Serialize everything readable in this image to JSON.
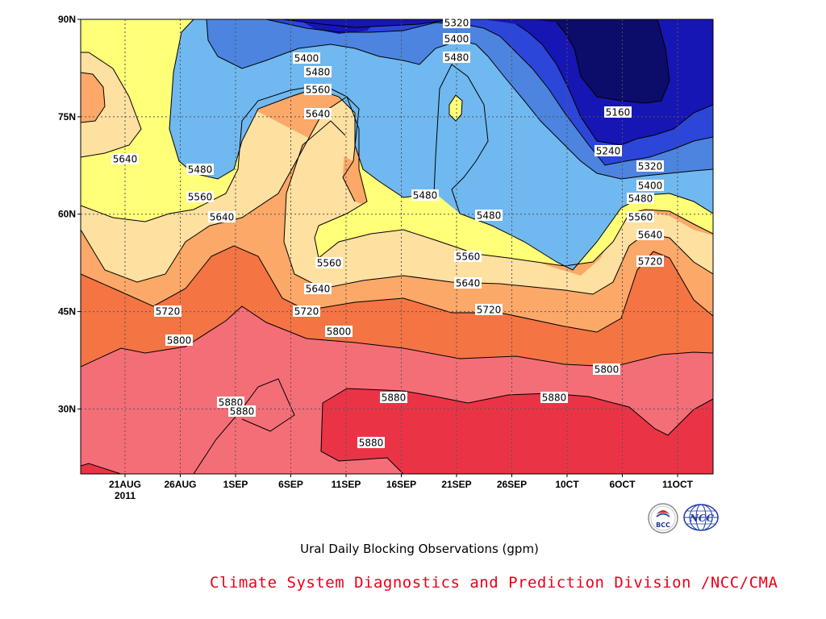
{
  "chart_data": {
    "type": "contour",
    "title": "Ural Daily Blocking Observations (gpm)",
    "x_ticks": [
      "21AUG",
      "26AUG",
      "1SEP",
      "6SEP",
      "11SEP",
      "16SEP",
      "21SEP",
      "26SEP",
      "10CT",
      "6OCT",
      "11OCT"
    ],
    "x_year_label": "2011",
    "y_ticks": [
      "30N",
      "45N",
      "60N",
      "75N",
      "90N"
    ],
    "ylim": [
      20,
      90
    ],
    "contour_levels": [
      5160,
      5240,
      5320,
      5400,
      5480,
      5560,
      5640,
      5720,
      5800,
      5880
    ],
    "level_colors": [
      "#0c0c6a",
      "#1616b4",
      "#2c46da",
      "#4c84e0",
      "#70b8f0",
      "#ffff78",
      "#fee0a0",
      "#fca868",
      "#f47444",
      "#f46e78",
      "#ea3446"
    ],
    "contour_labels": [
      {
        "text": "5320"
      },
      {
        "text": "5400"
      },
      {
        "text": "5480"
      },
      {
        "text": "5400"
      },
      {
        "text": "5480"
      },
      {
        "text": "5560"
      },
      {
        "text": "5640"
      },
      {
        "text": "5160"
      },
      {
        "text": "5240"
      },
      {
        "text": "5320"
      },
      {
        "text": "5400"
      },
      {
        "text": "5480"
      },
      {
        "text": "5560"
      },
      {
        "text": "5640"
      },
      {
        "text": "5720"
      },
      {
        "text": "5640"
      },
      {
        "text": "5480"
      },
      {
        "text": "5560"
      },
      {
        "text": "5640"
      },
      {
        "text": "5480"
      },
      {
        "text": "5480"
      },
      {
        "text": "5560"
      },
      {
        "text": "5560"
      },
      {
        "text": "5640"
      },
      {
        "text": "5640"
      },
      {
        "text": "5720"
      },
      {
        "text": "5720"
      },
      {
        "text": "5720"
      },
      {
        "text": "5800"
      },
      {
        "text": "5800"
      },
      {
        "text": "5800"
      },
      {
        "text": "5880"
      },
      {
        "text": "5880"
      },
      {
        "text": "5880"
      },
      {
        "text": "5880"
      },
      {
        "text": "5880"
      }
    ]
  },
  "credit": "Climate System Diagnostics and Prediction Division /NCC/CMA",
  "logos": [
    {
      "icon": "bcc-logo-icon",
      "text": "BCC"
    },
    {
      "icon": "ncc-logo-icon",
      "text": "NCC"
    }
  ]
}
